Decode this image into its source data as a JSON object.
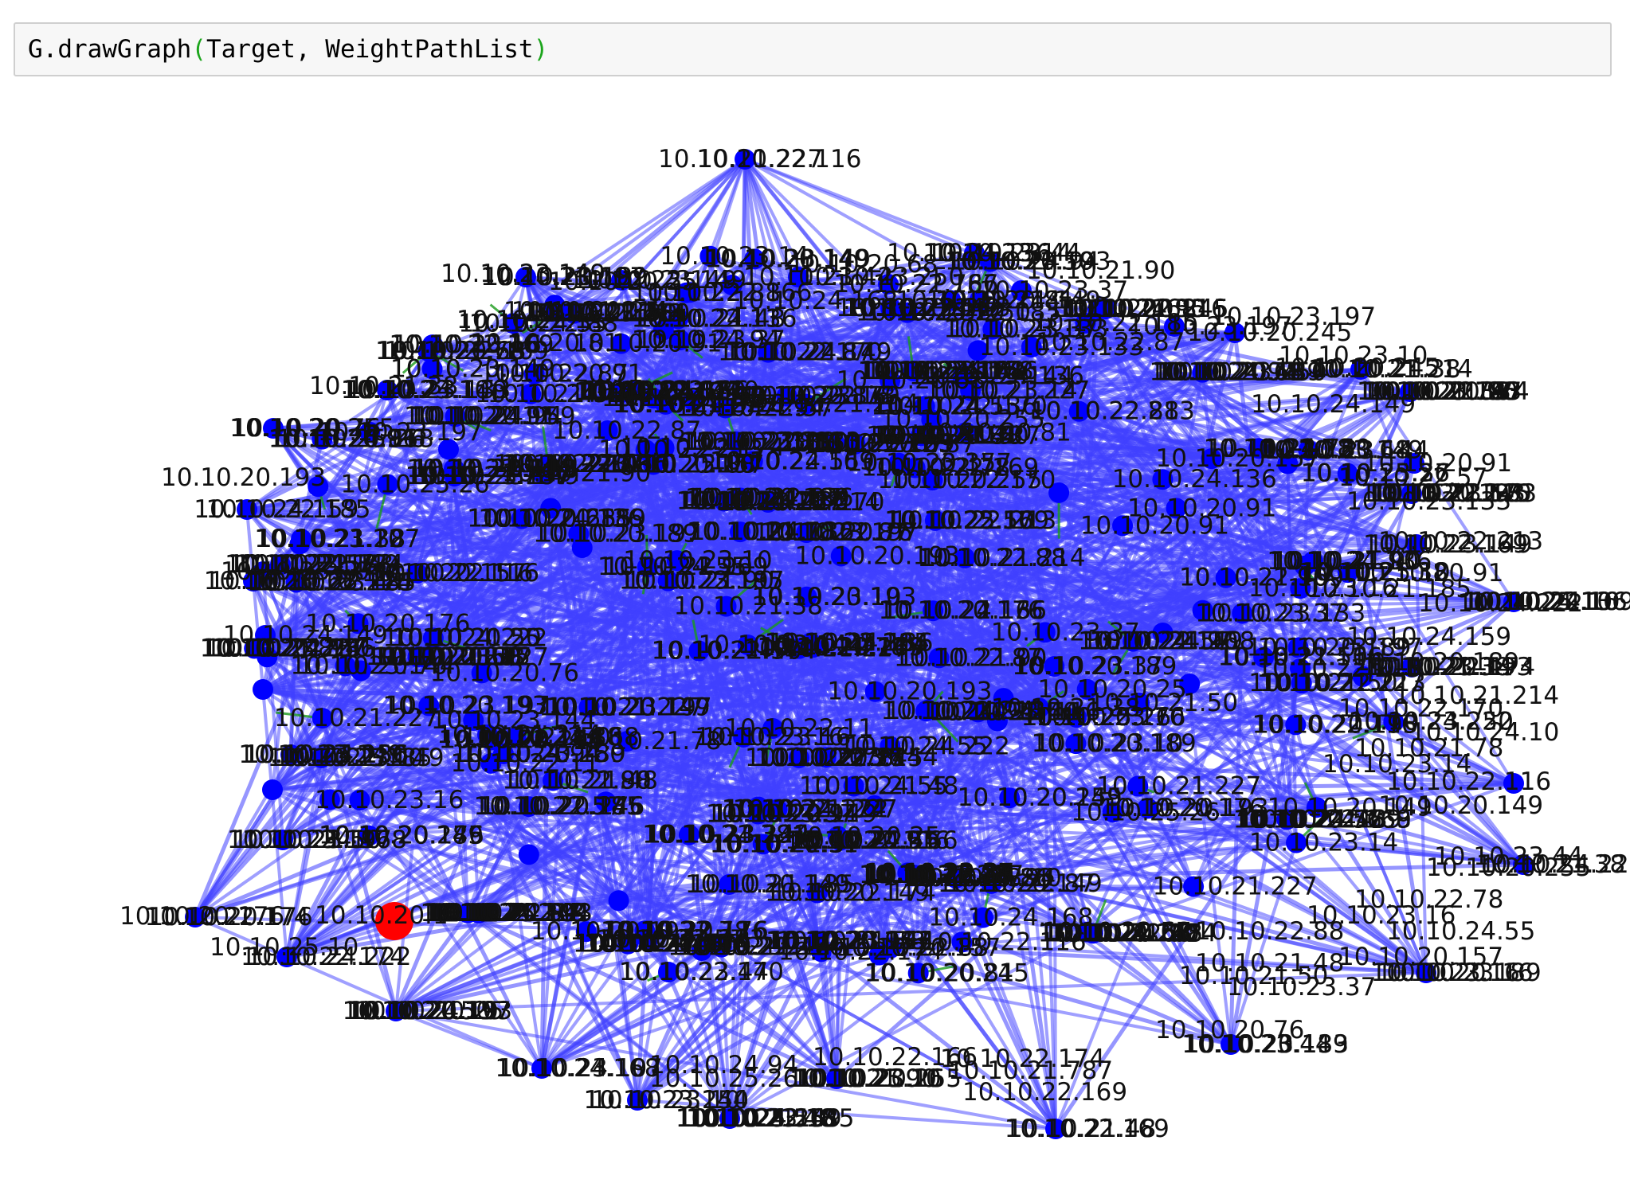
{
  "code_cell": {
    "function": "G.drawGraph",
    "open_paren": "(",
    "args": "Target, WeightPathList",
    "close_paren": ")"
  },
  "graph": {
    "edge_color": "#4040ff",
    "node_color": "#0000ff",
    "target_node_color": "#ff0000",
    "inner_edge_color": "#1a9a1a",
    "labels": [
      "10.10.21.227",
      "10.10.24.136",
      "10.10.21.90",
      "10.10.23.149",
      "10.10.20.25",
      "10.10.23.250",
      "10.10.20.68",
      "10.10.24.168",
      "10.10.22.185",
      "10.10.23.197",
      "10.10.23.10",
      "10.10.20.245",
      "10.10.23.144",
      "10.10.22.57",
      "10.10.23.133",
      "10.10.22.213",
      "10.10.20.91",
      "10.10.24.222",
      "10.10.24.159",
      "10.10.20.189",
      "10.10.21.214",
      "10.10.24.10",
      "10.10.22.116",
      "10.10.20.149",
      "10.10.23.44",
      "10.10.20.255",
      "10.10.22.78",
      "10.10.24.55",
      "10.10.20.157",
      "10.10.20.76",
      "10.10.22.169",
      "10.10.22.166",
      "10.10.24.94",
      "10.10.25.26",
      "10.10.20.176",
      "10.10.25.10",
      "10.10.21.38",
      "10.10.20.193",
      "10.10.22.11",
      "10.10.20.81",
      "10.10.24.149",
      "10.10.22.87",
      "10.10.21.50",
      "10.10.23.37",
      "10.10.21.48",
      "10.10.22.88",
      "10.10.21.185",
      "10.10.22.170",
      "10.10.21.78",
      "10.10.23.16",
      "10.10.22.174",
      "10.10.21.787",
      "10.10.23.14"
    ],
    "target_label": "10.10.20.1"
  }
}
